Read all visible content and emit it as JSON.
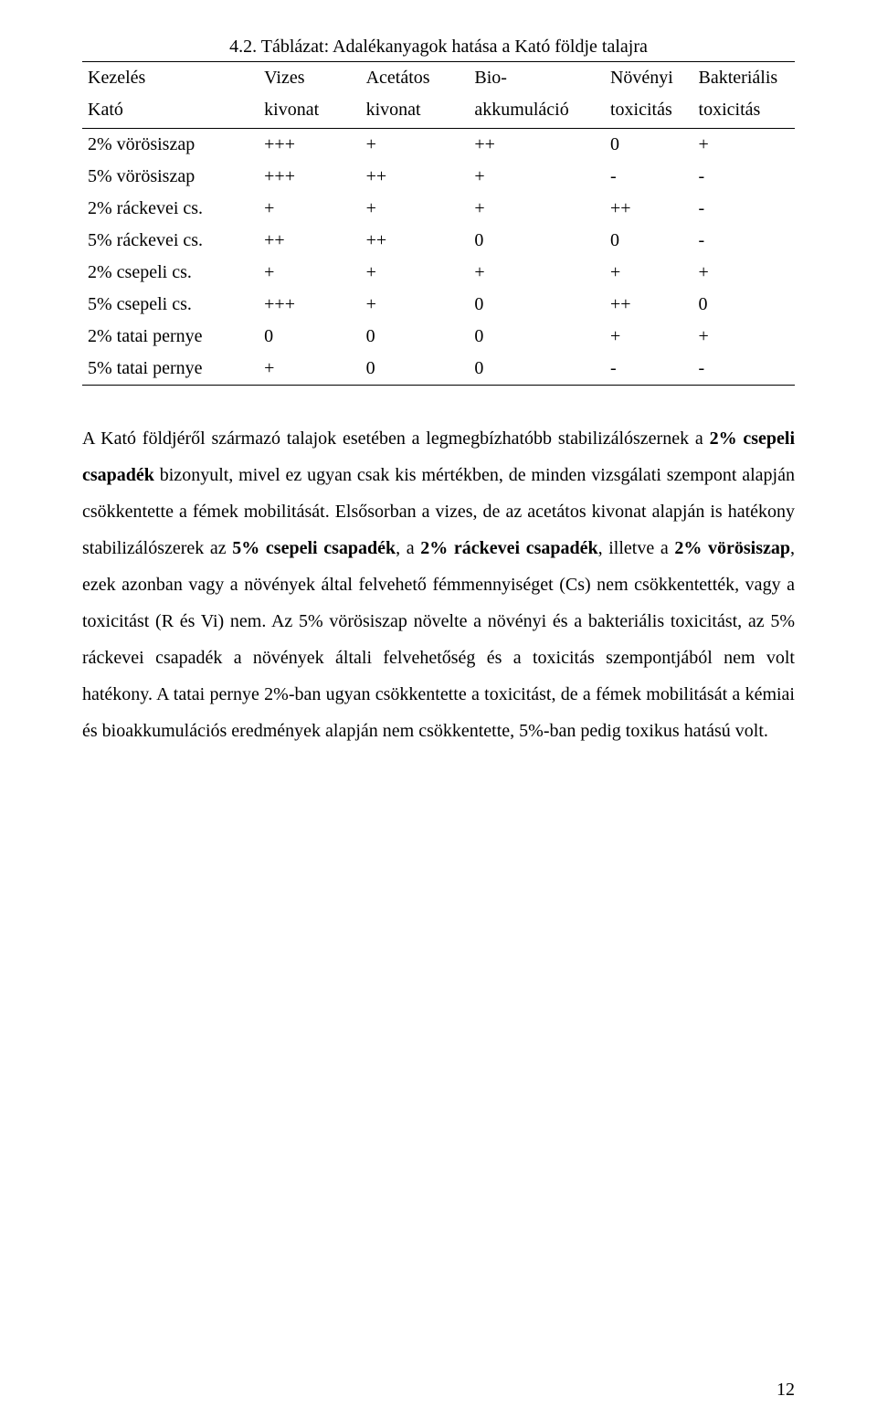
{
  "table": {
    "title": "4.2. Táblázat: Adalékanyagok hatása a Kató földje talajra",
    "header_row1": [
      "Kezelés",
      "Vizes",
      "Acetátos",
      "Bio-",
      "Növényi",
      "Bakteriális"
    ],
    "header_row2": [
      "Kató",
      "kivonat",
      "kivonat",
      "akkumuláció",
      "toxicitás",
      "toxicitás"
    ],
    "rows": [
      [
        "2% vörösiszap",
        "+++",
        "+",
        "++",
        "0",
        "+"
      ],
      [
        "5% vörösiszap",
        "+++",
        "++",
        "+",
        "-",
        "-"
      ],
      [
        "2% ráckevei cs.",
        "+",
        "+",
        "+",
        "++",
        "-"
      ],
      [
        "5% ráckevei cs.",
        "++",
        "++",
        "0",
        "0",
        "-"
      ],
      [
        "2% csepeli cs.",
        "+",
        "+",
        "+",
        "+",
        "+"
      ],
      [
        "5% csepeli cs.",
        "+++",
        "+",
        "0",
        "++",
        "0"
      ],
      [
        "2% tatai pernye",
        "0",
        "0",
        "0",
        "+",
        "+"
      ],
      [
        "5% tatai pernye",
        "+",
        "0",
        "0",
        "-",
        "-"
      ]
    ]
  },
  "paragraph": {
    "t0": "A Kató földjéről származó talajok esetében a legmegbízhatóbb stabilizálószernek a ",
    "b0": "2% csepeli csapadék",
    "t1": " bizonyult, mivel ez ugyan csak kis mértékben, de minden vizsgálati szempont alapján csökkentette a fémek mobilitását. Elsősorban a vizes, de az acetátos kivonat alapján is hatékony stabilizálószerek az ",
    "b1": "5% csepeli csapadék",
    "t2": ", a ",
    "b2": "2% ráckevei csapadék",
    "t3": ", illetve a ",
    "b3": "2% vörösiszap",
    "t4": ", ezek azonban vagy a növények által felvehető fémmennyiséget (Cs) nem csökkentették, vagy a toxicitást (R és Vi) nem. Az 5% vörösiszap növelte a növényi és a bakteriális toxicitást, az 5% ráckevei csapadék a növények általi felvehetőség és a toxicitás szempontjából nem volt hatékony. A tatai pernye 2%-ban ugyan csökkentette a toxicitást, de a fémek mobilitását a kémiai és bioakkumulációs eredmények alapján nem csökkentette, 5%-ban pedig toxikus hatású volt."
  },
  "page_number": "12"
}
